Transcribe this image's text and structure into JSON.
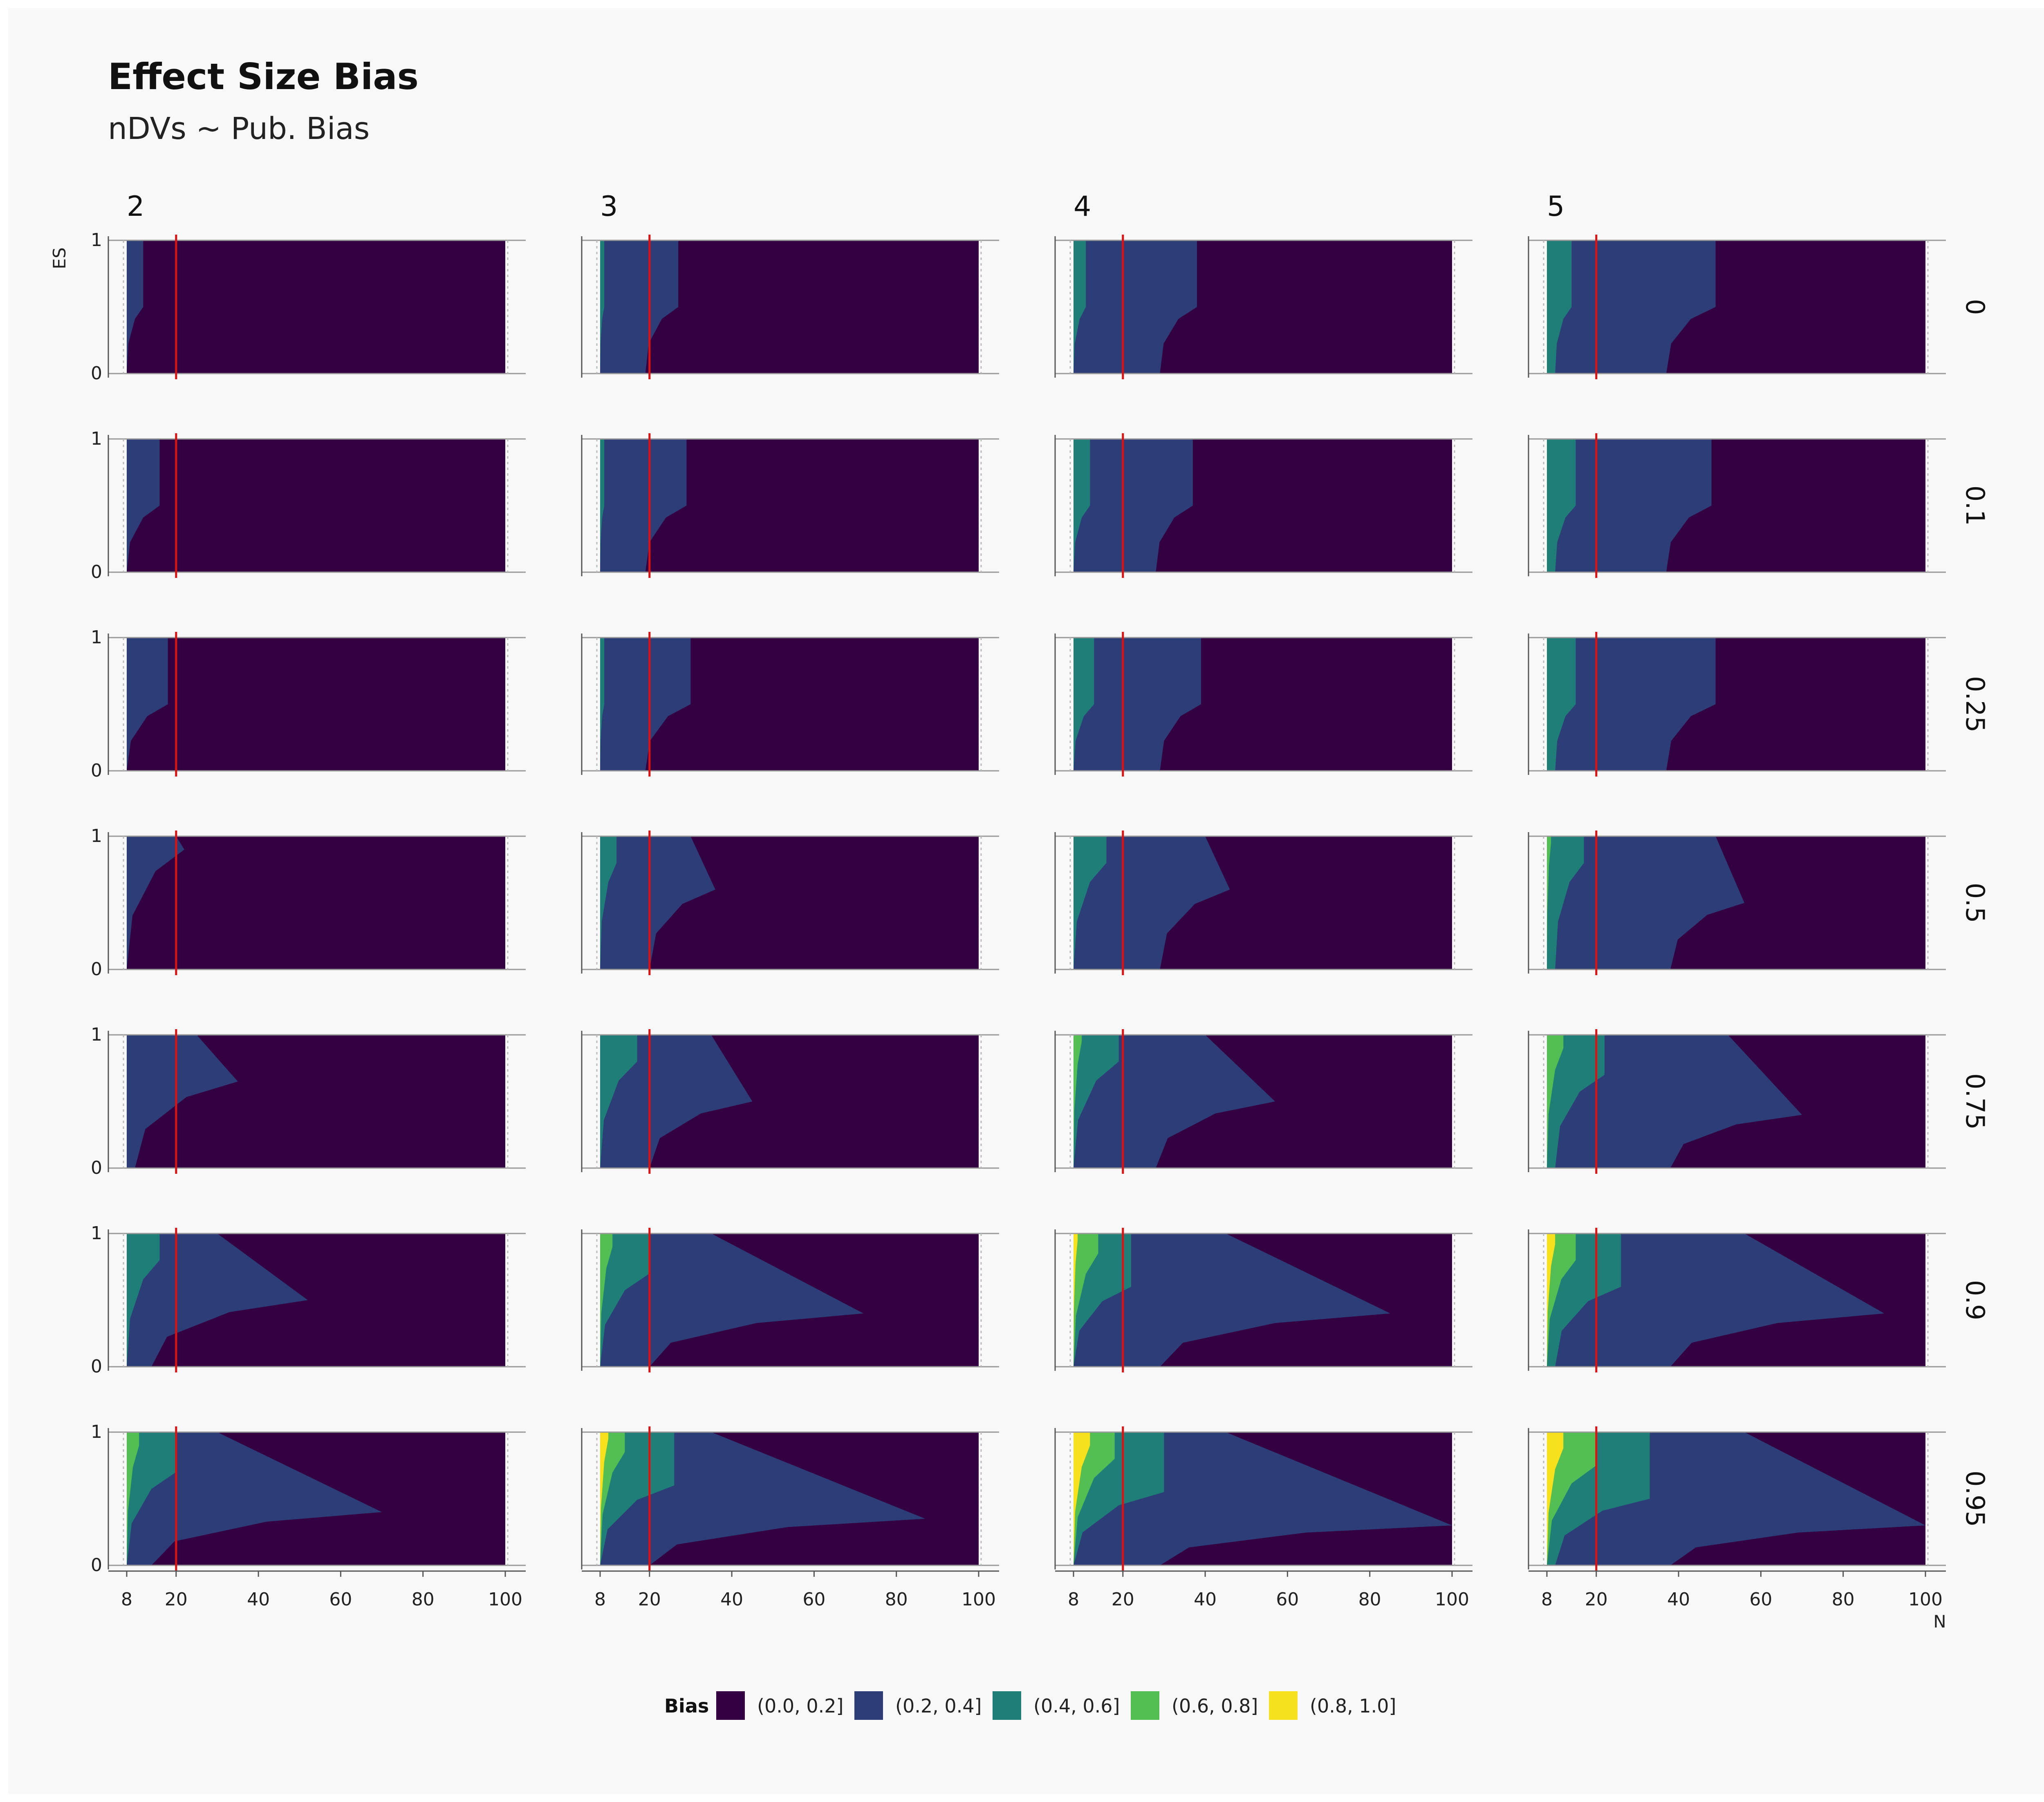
{
  "chart_data": {
    "type": "heatmap",
    "title": "Effect Size Bias",
    "subtitle": "nDVs ~ Pub. Bias",
    "xlabel": "N",
    "ylabel": "ES",
    "x_ticks": [
      8,
      20,
      40,
      60,
      80,
      100
    ],
    "y_ticks": [
      0,
      1
    ],
    "xlim": [
      8,
      100
    ],
    "ylim": [
      0,
      1
    ],
    "reference_line_n": 20,
    "reference_line_color": "#dd1111",
    "column_facet_values": [
      "2",
      "3",
      "4",
      "5"
    ],
    "row_facet_values": [
      "0",
      "0.1",
      "0.25",
      "0.5",
      "0.75",
      "0.9",
      "0.95"
    ],
    "legend": {
      "title": "Bias",
      "placement": "bottom",
      "bins": [
        {
          "label": "(0.0, 0.2]",
          "color": "#330042"
        },
        {
          "label": "(0.2, 0.4]",
          "color": "#2d3d78"
        },
        {
          "label": "(0.4, 0.6]",
          "color": "#1f7f78"
        },
        {
          "label": "(0.6, 0.8]",
          "color": "#52be54"
        },
        {
          "label": "(0.8, 1.0]",
          "color": "#f7e11d"
        }
      ]
    },
    "panels": [
      {
        "ndv": "2",
        "pub_bias": "0",
        "boundaries": [
          {
            "level": 1,
            "low_n": 8,
            "high_n": 12,
            "spike_n": 12,
            "spike_es": 0.5
          }
        ]
      },
      {
        "ndv": "3",
        "pub_bias": "0",
        "boundaries": [
          {
            "level": 1,
            "low_n": 19,
            "high_n": 27,
            "spike_n": 27,
            "spike_es": 0.5
          },
          {
            "level": 2,
            "low_n": 8,
            "high_n": 9,
            "spike_n": 9,
            "spike_es": 0.5
          }
        ]
      },
      {
        "ndv": "4",
        "pub_bias": "0",
        "boundaries": [
          {
            "level": 1,
            "low_n": 29,
            "high_n": 38,
            "spike_n": 38,
            "spike_es": 0.5
          },
          {
            "level": 2,
            "low_n": 8,
            "high_n": 11,
            "spike_n": 11,
            "spike_es": 0.5
          }
        ]
      },
      {
        "ndv": "5",
        "pub_bias": "0",
        "boundaries": [
          {
            "level": 1,
            "low_n": 37,
            "high_n": 49,
            "spike_n": 49,
            "spike_es": 0.5
          },
          {
            "level": 2,
            "low_n": 10,
            "high_n": 14,
            "spike_n": 14,
            "spike_es": 0.5
          }
        ]
      },
      {
        "ndv": "2",
        "pub_bias": "0.1",
        "boundaries": [
          {
            "level": 1,
            "low_n": 8,
            "high_n": 16,
            "spike_n": 16,
            "spike_es": 0.5
          }
        ]
      },
      {
        "ndv": "3",
        "pub_bias": "0.1",
        "boundaries": [
          {
            "level": 1,
            "low_n": 19,
            "high_n": 29,
            "spike_n": 29,
            "spike_es": 0.5
          },
          {
            "level": 2,
            "low_n": 8,
            "high_n": 9,
            "spike_n": 9,
            "spike_es": 0.5
          }
        ]
      },
      {
        "ndv": "4",
        "pub_bias": "0.1",
        "boundaries": [
          {
            "level": 1,
            "low_n": 28,
            "high_n": 37,
            "spike_n": 37,
            "spike_es": 0.5
          },
          {
            "level": 2,
            "low_n": 8,
            "high_n": 12,
            "spike_n": 12,
            "spike_es": 0.5
          }
        ]
      },
      {
        "ndv": "5",
        "pub_bias": "0.1",
        "boundaries": [
          {
            "level": 1,
            "low_n": 37,
            "high_n": 48,
            "spike_n": 48,
            "spike_es": 0.5
          },
          {
            "level": 2,
            "low_n": 10,
            "high_n": 15,
            "spike_n": 15,
            "spike_es": 0.5
          }
        ]
      },
      {
        "ndv": "2",
        "pub_bias": "0.25",
        "boundaries": [
          {
            "level": 1,
            "low_n": 8,
            "high_n": 18,
            "spike_n": 18,
            "spike_es": 0.5
          }
        ]
      },
      {
        "ndv": "3",
        "pub_bias": "0.25",
        "boundaries": [
          {
            "level": 1,
            "low_n": 19,
            "high_n": 30,
            "spike_n": 30,
            "spike_es": 0.5
          },
          {
            "level": 2,
            "low_n": 8,
            "high_n": 9,
            "spike_n": 9,
            "spike_es": 0.5
          }
        ]
      },
      {
        "ndv": "4",
        "pub_bias": "0.25",
        "boundaries": [
          {
            "level": 1,
            "low_n": 29,
            "high_n": 39,
            "spike_n": 39,
            "spike_es": 0.5
          },
          {
            "level": 2,
            "low_n": 8,
            "high_n": 13,
            "spike_n": 13,
            "spike_es": 0.5
          }
        ]
      },
      {
        "ndv": "5",
        "pub_bias": "0.25",
        "boundaries": [
          {
            "level": 1,
            "low_n": 37,
            "high_n": 49,
            "spike_n": 49,
            "spike_es": 0.5
          },
          {
            "level": 2,
            "low_n": 10,
            "high_n": 15,
            "spike_n": 15,
            "spike_es": 0.5
          }
        ]
      },
      {
        "ndv": "2",
        "pub_bias": "0.5",
        "boundaries": [
          {
            "level": 1,
            "low_n": 8,
            "high_n": 20,
            "spike_n": 22,
            "spike_es": 0.9
          }
        ]
      },
      {
        "ndv": "3",
        "pub_bias": "0.5",
        "boundaries": [
          {
            "level": 1,
            "low_n": 20,
            "high_n": 30,
            "spike_n": 36,
            "spike_es": 0.6
          },
          {
            "level": 2,
            "low_n": 8,
            "high_n": 12,
            "spike_n": 12,
            "spike_es": 0.8
          }
        ]
      },
      {
        "ndv": "4",
        "pub_bias": "0.5",
        "boundaries": [
          {
            "level": 1,
            "low_n": 29,
            "high_n": 40,
            "spike_n": 46,
            "spike_es": 0.6
          },
          {
            "level": 2,
            "low_n": 8,
            "high_n": 16,
            "spike_n": 16,
            "spike_es": 0.8
          }
        ]
      },
      {
        "ndv": "5",
        "pub_bias": "0.5",
        "boundaries": [
          {
            "level": 1,
            "low_n": 38,
            "high_n": 49,
            "spike_n": 56,
            "spike_es": 0.5
          },
          {
            "level": 2,
            "low_n": 10,
            "high_n": 17,
            "spike_n": 17,
            "spike_es": 0.8
          },
          {
            "level": 3,
            "low_n": 8,
            "high_n": 9,
            "spike_n": 9,
            "spike_es": 0.95
          }
        ]
      },
      {
        "ndv": "2",
        "pub_bias": "0.75",
        "boundaries": [
          {
            "level": 1,
            "low_n": 10,
            "high_n": 25,
            "spike_n": 35,
            "spike_es": 0.65
          }
        ]
      },
      {
        "ndv": "3",
        "pub_bias": "0.75",
        "boundaries": [
          {
            "level": 1,
            "low_n": 20,
            "high_n": 35,
            "spike_n": 45,
            "spike_es": 0.5
          },
          {
            "level": 2,
            "low_n": 8,
            "high_n": 17,
            "spike_n": 17,
            "spike_es": 0.8
          }
        ]
      },
      {
        "ndv": "4",
        "pub_bias": "0.75",
        "boundaries": [
          {
            "level": 1,
            "low_n": 28,
            "high_n": 40,
            "spike_n": 57,
            "spike_es": 0.5
          },
          {
            "level": 2,
            "low_n": 8,
            "high_n": 19,
            "spike_n": 19,
            "spike_es": 0.8
          },
          {
            "level": 3,
            "low_n": 8,
            "high_n": 10,
            "spike_n": 10,
            "spike_es": 0.95
          }
        ]
      },
      {
        "ndv": "5",
        "pub_bias": "0.75",
        "boundaries": [
          {
            "level": 1,
            "low_n": 38,
            "high_n": 52,
            "spike_n": 70,
            "spike_es": 0.4
          },
          {
            "level": 2,
            "low_n": 10,
            "high_n": 22,
            "spike_n": 22,
            "spike_es": 0.7
          },
          {
            "level": 3,
            "low_n": 8,
            "high_n": 12,
            "spike_n": 12,
            "spike_es": 0.9
          }
        ]
      },
      {
        "ndv": "2",
        "pub_bias": "0.9",
        "boundaries": [
          {
            "level": 1,
            "low_n": 14,
            "high_n": 30,
            "spike_n": 52,
            "spike_es": 0.5
          },
          {
            "level": 2,
            "low_n": 8,
            "high_n": 16,
            "spike_n": 16,
            "spike_es": 0.8
          }
        ]
      },
      {
        "ndv": "3",
        "pub_bias": "0.9",
        "boundaries": [
          {
            "level": 1,
            "low_n": 20,
            "high_n": 35,
            "spike_n": 72,
            "spike_es": 0.4
          },
          {
            "level": 2,
            "low_n": 8,
            "high_n": 20,
            "spike_n": 20,
            "spike_es": 0.7
          },
          {
            "level": 3,
            "low_n": 8,
            "high_n": 11,
            "spike_n": 11,
            "spike_es": 0.9
          }
        ]
      },
      {
        "ndv": "4",
        "pub_bias": "0.9",
        "boundaries": [
          {
            "level": 1,
            "low_n": 29,
            "high_n": 45,
            "spike_n": 85,
            "spike_es": 0.4
          },
          {
            "level": 2,
            "low_n": 8,
            "high_n": 22,
            "spike_n": 22,
            "spike_es": 0.6
          },
          {
            "level": 3,
            "low_n": 8,
            "high_n": 14,
            "spike_n": 14,
            "spike_es": 0.85
          },
          {
            "level": 4,
            "low_n": 8,
            "high_n": 9,
            "spike_n": 9,
            "spike_es": 0.95
          }
        ]
      },
      {
        "ndv": "5",
        "pub_bias": "0.9",
        "boundaries": [
          {
            "level": 1,
            "low_n": 38,
            "high_n": 56,
            "spike_n": 90,
            "spike_es": 0.4
          },
          {
            "level": 2,
            "low_n": 10,
            "high_n": 26,
            "spike_n": 26,
            "spike_es": 0.6
          },
          {
            "level": 3,
            "low_n": 8,
            "high_n": 15,
            "spike_n": 15,
            "spike_es": 0.8
          },
          {
            "level": 4,
            "low_n": 8,
            "high_n": 10,
            "spike_n": 10,
            "spike_es": 0.92
          }
        ]
      },
      {
        "ndv": "2",
        "pub_bias": "0.95",
        "boundaries": [
          {
            "level": 1,
            "low_n": 14,
            "high_n": 30,
            "spike_n": 70,
            "spike_es": 0.4
          },
          {
            "level": 2,
            "low_n": 8,
            "high_n": 20,
            "spike_n": 20,
            "spike_es": 0.7
          },
          {
            "level": 3,
            "low_n": 8,
            "high_n": 11,
            "spike_n": 11,
            "spike_es": 0.9
          }
        ]
      },
      {
        "ndv": "3",
        "pub_bias": "0.95",
        "boundaries": [
          {
            "level": 1,
            "low_n": 20,
            "high_n": 35,
            "spike_n": 87,
            "spike_es": 0.35
          },
          {
            "level": 2,
            "low_n": 8,
            "high_n": 26,
            "spike_n": 26,
            "spike_es": 0.6
          },
          {
            "level": 3,
            "low_n": 8,
            "high_n": 14,
            "spike_n": 14,
            "spike_es": 0.85
          },
          {
            "level": 4,
            "low_n": 8,
            "high_n": 10,
            "spike_n": 10,
            "spike_es": 0.95
          }
        ]
      },
      {
        "ndv": "4",
        "pub_bias": "0.95",
        "boundaries": [
          {
            "level": 1,
            "low_n": 29,
            "high_n": 45,
            "spike_n": 100,
            "spike_es": 0.3
          },
          {
            "level": 2,
            "low_n": 8,
            "high_n": 30,
            "spike_n": 30,
            "spike_es": 0.55
          },
          {
            "level": 3,
            "low_n": 8,
            "high_n": 18,
            "spike_n": 18,
            "spike_es": 0.8
          },
          {
            "level": 4,
            "low_n": 8,
            "high_n": 12,
            "spike_n": 12,
            "spike_es": 0.9
          }
        ]
      },
      {
        "ndv": "5",
        "pub_bias": "0.95",
        "boundaries": [
          {
            "level": 1,
            "low_n": 38,
            "high_n": 56,
            "spike_n": 100,
            "spike_es": 0.3
          },
          {
            "level": 2,
            "low_n": 10,
            "high_n": 33,
            "spike_n": 33,
            "spike_es": 0.5
          },
          {
            "level": 3,
            "low_n": 8,
            "high_n": 20,
            "spike_n": 20,
            "spike_es": 0.75
          },
          {
            "level": 4,
            "low_n": 8,
            "high_n": 12,
            "spike_n": 12,
            "spike_es": 0.88
          }
        ]
      }
    ]
  }
}
